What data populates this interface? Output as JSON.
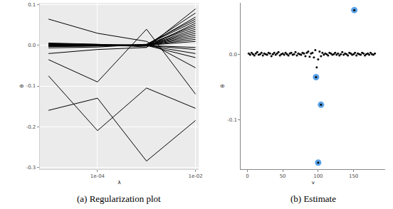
{
  "chart_data": [
    {
      "type": "line",
      "title": "(a) Regularization plot",
      "x_label": "λ",
      "y_label": "θ",
      "log": "x",
      "grid": true,
      "x": [
        1e-05,
        0.0001,
        0.001,
        0.01
      ],
      "xlim": [
        6.6e-06,
        0.0117
      ],
      "xticks": [
        {
          "value": 0.0001,
          "label": "1e-04"
        },
        {
          "value": 0.01,
          "label": "1e-02"
        }
      ],
      "ylim": [
        -0.305,
        0.105
      ],
      "yticks": [
        0.1,
        {
          "value": 0,
          "label": "0.0"
        },
        -0.1,
        -0.2,
        -0.3
      ],
      "series": [
        {
          "color": "#000000",
          "values": [
            0.065,
            0.03,
            0.01,
            -0.055
          ]
        },
        {
          "color": "#000000",
          "values": [
            -0.035,
            -0.09,
            0.04,
            -0.12
          ]
        },
        {
          "color": "#000000",
          "values": [
            -0.075,
            -0.21,
            -0.105,
            -0.155
          ]
        },
        {
          "color": "#000000",
          "values": [
            -0.16,
            -0.13,
            -0.285,
            -0.185
          ]
        },
        {
          "color": "#000000",
          "values": [
            -0.02,
            -0.01,
            -0.005,
            0.09
          ]
        },
        {
          "color": "#000000",
          "values": [
            0.005,
            0.002,
            0.0,
            0.08
          ]
        },
        {
          "color": "#000000",
          "values": [
            0.003,
            0.001,
            0.0,
            0.07
          ]
        },
        {
          "color": "#000000",
          "values": [
            0.002,
            0.001,
            0.002,
            0.06
          ]
        },
        {
          "color": "#000000",
          "values": [
            0.0,
            0.0,
            0.001,
            0.05
          ]
        },
        {
          "color": "#000000",
          "values": [
            -0.002,
            0.0,
            0.002,
            0.045
          ]
        },
        {
          "color": "#000000",
          "values": [
            0.004,
            0.002,
            0.0,
            0.04
          ]
        },
        {
          "color": "#000000",
          "values": [
            0.0,
            0.001,
            0.0,
            0.035
          ]
        },
        {
          "color": "#000000",
          "values": [
            -0.003,
            -0.001,
            0.0,
            0.03
          ]
        },
        {
          "color": "#000000",
          "values": [
            0.001,
            0.0,
            0.0,
            0.025
          ]
        },
        {
          "color": "#000000",
          "values": [
            0.002,
            0.001,
            0.0,
            0.02
          ]
        },
        {
          "color": "#000000",
          "values": [
            0.0,
            0.0,
            0.0,
            0.015
          ]
        },
        {
          "color": "#000000",
          "values": [
            -0.001,
            0.0,
            0.0,
            0.01
          ]
        },
        {
          "color": "#000000",
          "values": [
            0.0,
            0.0,
            0.0,
            -0.005
          ]
        },
        {
          "color": "#000000",
          "values": [
            0.001,
            0.0,
            0.0,
            -0.01
          ]
        },
        {
          "color": "#000000",
          "values": [
            0.0,
            0.0,
            0.0,
            -0.02
          ]
        },
        {
          "color": "#000000",
          "values": [
            -0.002,
            -0.001,
            0.0,
            -0.03
          ]
        },
        {
          "color": "#000000",
          "values": [
            0.006,
            0.003,
            -0.004,
            0.055
          ]
        },
        {
          "color": "#000000",
          "values": [
            -0.006,
            -0.004,
            0.003,
            0.065
          ]
        }
      ]
    },
    {
      "type": "scatter",
      "title": "(b) Estimate",
      "x_label": "v",
      "y_label": "θ",
      "grid": false,
      "xlim": [
        -9,
        195
      ],
      "xticks": [
        0,
        50,
        100,
        150
      ],
      "ylim": [
        -0.175,
        0.078
      ],
      "yticks": [
        {
          "value": 0,
          "label": "0.0"
        },
        -0.1
      ],
      "series": [
        {
          "color": "#5aa2e6",
          "marker": "circle",
          "x": [
            151,
            97,
            104,
            100
          ],
          "values": [
            0.067,
            -0.035,
            -0.077,
            -0.165
          ]
        },
        {
          "color": "#000000",
          "marker": "dot",
          "x": [
            2,
            4,
            6,
            8,
            10,
            12,
            14,
            16,
            18,
            20,
            22,
            24,
            26,
            28,
            30,
            32,
            34,
            36,
            38,
            40,
            42,
            44,
            46,
            48,
            50,
            52,
            54,
            56,
            58,
            60,
            62,
            64,
            66,
            68,
            70,
            72,
            74,
            76,
            78,
            80,
            82,
            84,
            86,
            88,
            90,
            92,
            94,
            96,
            98,
            100,
            102,
            104,
            106,
            108,
            110,
            112,
            114,
            116,
            118,
            120,
            122,
            124,
            126,
            128,
            130,
            132,
            134,
            136,
            138,
            140,
            142,
            144,
            146,
            148,
            150,
            152,
            154,
            156,
            158,
            160,
            162,
            164,
            166,
            168,
            170,
            172,
            174,
            176,
            178,
            180
          ],
          "values": [
            0.001,
            -0.001,
            0.002,
            0,
            -0.002,
            0.001,
            0.003,
            -0.001,
            0,
            0.002,
            -0.002,
            0.001,
            0,
            -0.001,
            0.002,
            0.001,
            -0.003,
            0,
            0.002,
            -0.001,
            0.001,
            0.003,
            -0.002,
            0,
            0.001,
            -0.001,
            0.002,
            0,
            -0.002,
            0.001,
            0.002,
            -0.001,
            0,
            0.003,
            -0.002,
            0.001,
            0,
            -0.001,
            0.002,
            0.001,
            -0.003,
            0.002,
            0.004,
            -0.004,
            0.001,
            0.002,
            -0.005,
            0.006,
            -0.02,
            -0.008,
            0.004,
            -0.003,
            0.002,
            -0.001,
            0.001,
            0,
            -0.002,
            0.002,
            0.001,
            -0.001,
            0,
            0.002,
            -0.001,
            0.001,
            -0.002,
            0,
            0.003,
            -0.001,
            0.001,
            0,
            -0.002,
            0.002,
            0.001,
            -0.001,
            0,
            0.002,
            -0.002,
            0.001,
            0,
            -0.001,
            0.002,
            0.001,
            -0.002,
            0,
            0.001,
            -0.001,
            0.002,
            0,
            -0.001,
            0.001
          ]
        }
      ]
    }
  ]
}
